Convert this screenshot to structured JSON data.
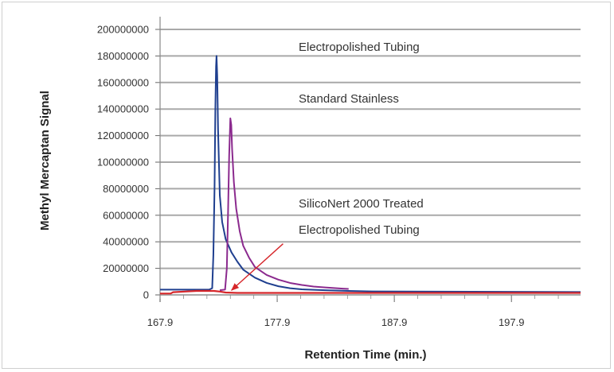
{
  "chart_data": {
    "type": "line",
    "xlabel": "Retention Time (min.)",
    "ylabel": "Methyl Mercaptan Signal",
    "xlim": [
      167.9,
      203.8
    ],
    "ylim": [
      0,
      200000000
    ],
    "x_ticks": [
      "167.9",
      "177.9",
      "187.9",
      "197.9"
    ],
    "y_ticks": [
      "0",
      "20000000",
      "40000000",
      "60000000",
      "80000000",
      "100000000",
      "120000000",
      "140000000",
      "160000000",
      "180000000",
      "200000000"
    ],
    "grid": true,
    "colors": {
      "standard": "#1f3f8f",
      "electro": "#8b2a8e",
      "silconert": "#d6262a",
      "grid": "#a9a9a9",
      "arrow": "#d6262a"
    },
    "series": [
      {
        "key": "standard",
        "values": [
          [
            167.9,
            4000000
          ],
          [
            172.1,
            4000000
          ],
          [
            172.35,
            5000000
          ],
          [
            172.45,
            30000000
          ],
          [
            172.55,
            80000000
          ],
          [
            172.62,
            140000000
          ],
          [
            172.68,
            172000000
          ],
          [
            172.72,
            180000000
          ],
          [
            172.78,
            165000000
          ],
          [
            172.85,
            125000000
          ],
          [
            173.0,
            75000000
          ],
          [
            173.2,
            55000000
          ],
          [
            173.5,
            42000000
          ],
          [
            174.0,
            32000000
          ],
          [
            174.5,
            25000000
          ],
          [
            175.0,
            19000000
          ],
          [
            176.0,
            13000000
          ],
          [
            177.0,
            9000000
          ],
          [
            178.0,
            6500000
          ],
          [
            179.0,
            5000000
          ],
          [
            180.0,
            4200000
          ],
          [
            182.0,
            3500000
          ],
          [
            184.0,
            3000000
          ],
          [
            186.0,
            2600000
          ],
          [
            203.8,
            2200000
          ]
        ]
      },
      {
        "key": "electro",
        "values": [
          [
            173.0,
            3500000
          ],
          [
            173.45,
            4000000
          ],
          [
            173.6,
            20000000
          ],
          [
            173.7,
            60000000
          ],
          [
            173.8,
            105000000
          ],
          [
            173.9,
            133000000
          ],
          [
            173.98,
            128000000
          ],
          [
            174.05,
            110000000
          ],
          [
            174.2,
            85000000
          ],
          [
            174.4,
            65000000
          ],
          [
            174.7,
            48000000
          ],
          [
            175.0,
            37000000
          ],
          [
            175.5,
            28000000
          ],
          [
            176.0,
            21000000
          ],
          [
            177.0,
            15000000
          ],
          [
            178.0,
            11500000
          ],
          [
            179.0,
            9000000
          ],
          [
            180.0,
            7500000
          ],
          [
            181.0,
            6300000
          ],
          [
            182.0,
            5600000
          ],
          [
            183.0,
            5000000
          ],
          [
            183.5,
            4700000
          ],
          [
            184.0,
            4500000
          ]
        ]
      },
      {
        "key": "silconert",
        "values": [
          [
            167.9,
            1000000
          ],
          [
            168.8,
            1000000
          ],
          [
            169.0,
            2000000
          ],
          [
            170.0,
            2500000
          ],
          [
            171.0,
            3000000
          ],
          [
            172.5,
            3000000
          ],
          [
            173.0,
            2500000
          ],
          [
            173.5,
            1800000
          ],
          [
            174.5,
            1500000
          ],
          [
            203.8,
            1500000
          ]
        ]
      }
    ],
    "annotations": [
      {
        "text": "Electropolished Tubing"
      },
      {
        "text": "Standard Stainless"
      },
      {
        "text": "SilicoNert 2000 Treated"
      },
      {
        "text": "Electropolished Tubing"
      }
    ],
    "arrow": {
      "from": [
        178.4,
        38500000
      ],
      "to": [
        174.0,
        3500000
      ]
    }
  }
}
